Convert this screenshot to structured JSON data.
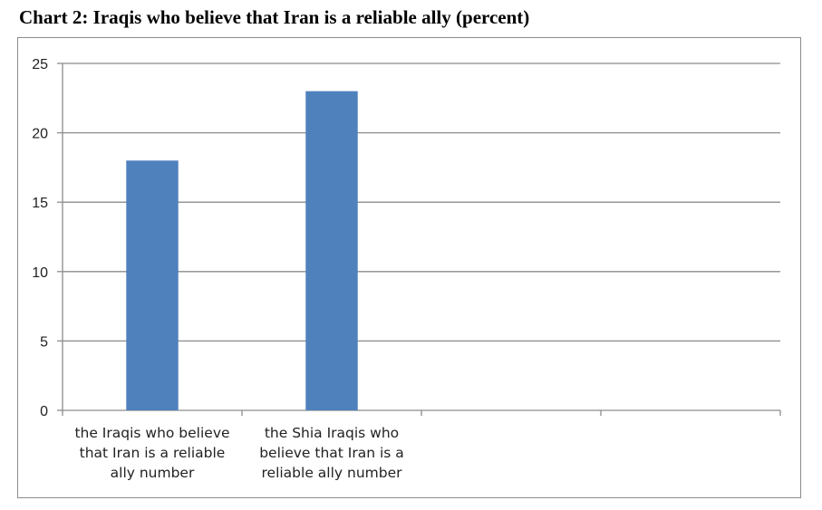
{
  "chart_data": {
    "type": "bar",
    "title": "Chart 2: Iraqis who believe that Iran is a reliable ally (percent)",
    "categories": [
      "the Iraqis who believe that Iran is a reliable ally number",
      "the Shia Iraqis who believe that Iran is a reliable ally number",
      "",
      ""
    ],
    "values": [
      18,
      23,
      null,
      null
    ],
    "ylim": [
      0,
      25
    ],
    "yticks": [
      0,
      5,
      10,
      15,
      20,
      25
    ],
    "xlabel": "",
    "ylabel": "",
    "grid": true,
    "legend": "none",
    "bar_color": "#4f81bd",
    "grid_color": "#8c8c8c"
  }
}
